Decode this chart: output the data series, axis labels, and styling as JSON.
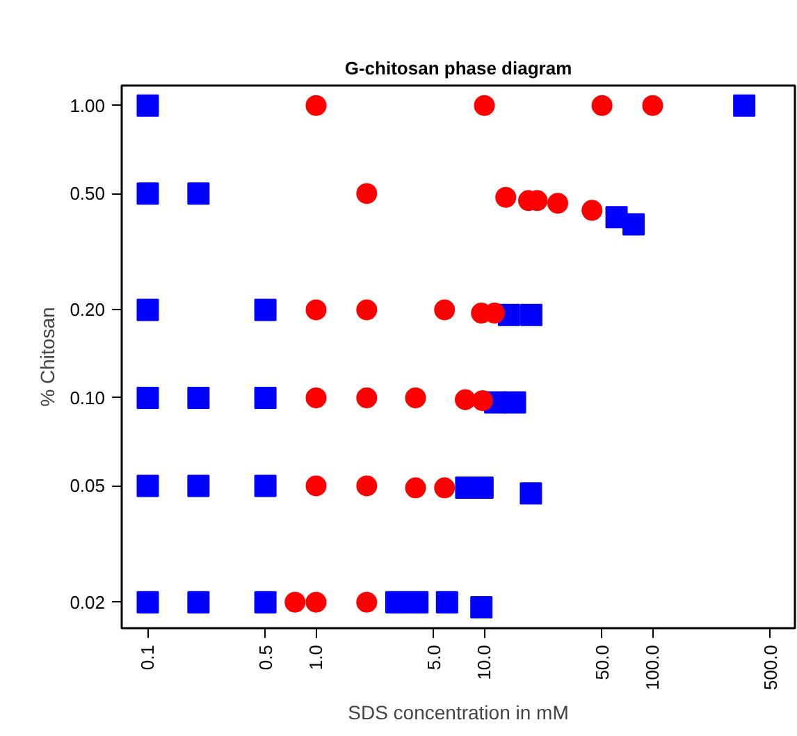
{
  "chart_data": {
    "type": "scatter",
    "title": "G-chitosan phase diagram",
    "xlabel": "SDS concentration in mM",
    "ylabel": "% Chitosan",
    "log": "xy",
    "grid": false,
    "xlim": [
      0.07,
      700
    ],
    "ylim": [
      0.0163,
      1.17
    ],
    "xticks": [
      0.1,
      0.5,
      {
        "value": 1,
        "label": "1.0"
      },
      {
        "value": 5,
        "label": "5.0"
      },
      {
        "value": 10,
        "label": "10.0"
      },
      {
        "value": 50,
        "label": "50.0"
      },
      {
        "value": 100,
        "label": "100.0"
      },
      {
        "value": 500,
        "label": "500.0"
      }
    ],
    "yticks": [
      {
        "value": 1,
        "label": "1.00"
      },
      {
        "value": 0.5,
        "label": "0.50"
      },
      {
        "value": 0.2,
        "label": "0.20"
      },
      {
        "value": 0.1,
        "label": "0.10"
      },
      0.05,
      0.02
    ],
    "series": [
      {
        "color": "#0000ff",
        "marker": "square",
        "x": [
          0.1,
          350,
          0.1,
          0.2,
          61,
          77,
          0.1,
          0.5,
          14,
          19,
          0.1,
          0.2,
          0.5,
          11.6,
          15.2,
          0.1,
          0.2,
          0.5,
          7.8,
          9.75,
          18.9,
          0.1,
          0.2,
          0.5,
          3,
          4,
          6,
          9.6
        ],
        "values": [
          1,
          1,
          0.5,
          0.5,
          0.415,
          0.392,
          0.2,
          0.2,
          0.192,
          0.192,
          0.1,
          0.1,
          0.1,
          0.0965,
          0.0965,
          0.05,
          0.05,
          0.05,
          0.0493,
          0.0493,
          0.0471,
          0.02,
          0.02,
          0.02,
          0.02,
          0.02,
          0.02,
          0.0192
        ]
      },
      {
        "color": "#ff0000",
        "marker": "circle",
        "x": [
          1,
          10,
          50,
          100,
          2,
          13.4,
          18.3,
          20.6,
          27.3,
          43.6,
          1,
          2,
          5.8,
          9.6,
          11.5,
          1,
          2,
          3.9,
          7.7,
          9.75,
          1,
          2,
          3.9,
          5.8,
          0.75,
          1,
          2
        ],
        "values": [
          1,
          1,
          1,
          1,
          0.5,
          0.485,
          0.473,
          0.473,
          0.463,
          0.438,
          0.2,
          0.2,
          0.2,
          0.195,
          0.195,
          0.1,
          0.1,
          0.1,
          0.0986,
          0.0978,
          0.05,
          0.05,
          0.0492,
          0.0492,
          0.02,
          0.02,
          0.02
        ]
      }
    ]
  }
}
